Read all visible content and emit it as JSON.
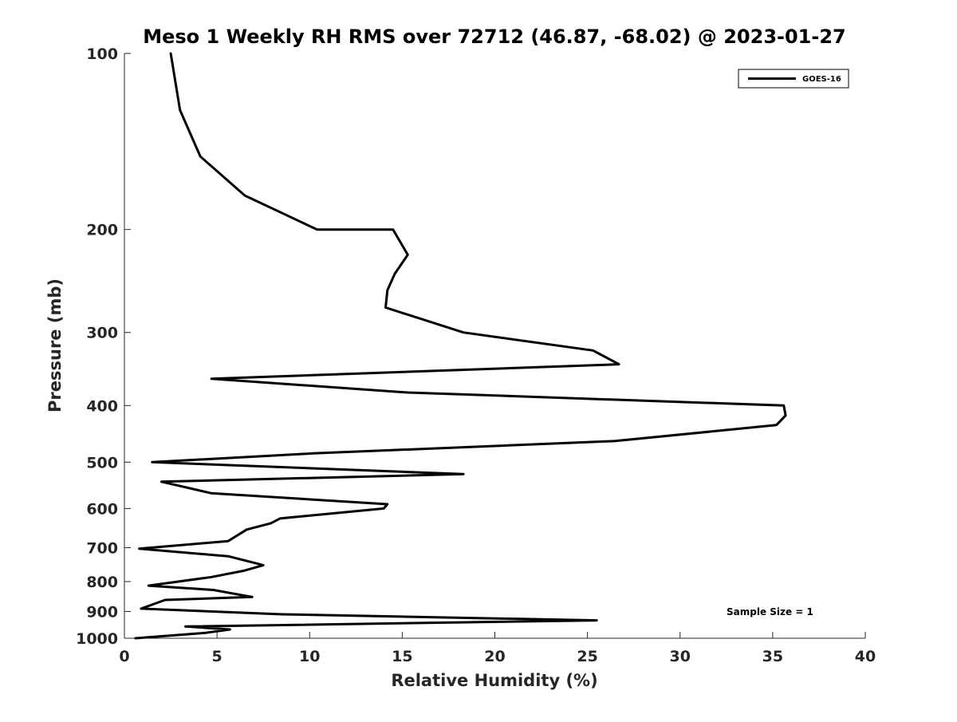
{
  "chart_data": {
    "type": "line",
    "title": "Meso 1 Weekly RH RMS over 72712 (46.87, -68.02) @ 2023-01-27",
    "xlabel": "Relative Humidity (%)",
    "ylabel": "Pressure (mb)",
    "xlim": [
      0,
      40
    ],
    "ylim": [
      100,
      1000
    ],
    "y_scale": "log",
    "y_reversed": true,
    "x_ticks": [
      "0",
      "5",
      "10",
      "15",
      "20",
      "25",
      "30",
      "35",
      "40"
    ],
    "y_ticks": [
      "100",
      "200",
      "300",
      "400",
      "500",
      "600",
      "700",
      "800",
      "900",
      "1000"
    ],
    "grid": false,
    "legend_position": "top-right",
    "annotation": "Sample Size = 1",
    "series": [
      {
        "name": "GOES-16",
        "color": "#000000",
        "points": [
          [
            2.5,
            100
          ],
          [
            3.0,
            125
          ],
          [
            4.1,
            150
          ],
          [
            6.5,
            175
          ],
          [
            10.4,
            200
          ],
          [
            14.5,
            200
          ],
          [
            15.3,
            221
          ],
          [
            14.6,
            238
          ],
          [
            14.2,
            254
          ],
          [
            14.1,
            272
          ],
          [
            18.3,
            300
          ],
          [
            25.3,
            322
          ],
          [
            26.7,
            340
          ],
          [
            4.7,
            360
          ],
          [
            15.3,
            380
          ],
          [
            35.6,
            400
          ],
          [
            35.7,
            416
          ],
          [
            35.2,
            432
          ],
          [
            26.5,
            460
          ],
          [
            10.2,
            483
          ],
          [
            1.5,
            500
          ],
          [
            18.3,
            524
          ],
          [
            2.0,
            540
          ],
          [
            4.7,
            565
          ],
          [
            14.2,
            590
          ],
          [
            14.0,
            600
          ],
          [
            8.4,
            624
          ],
          [
            7.9,
            636
          ],
          [
            6.6,
            652
          ],
          [
            5.6,
            682
          ],
          [
            0.8,
            703
          ],
          [
            5.6,
            724
          ],
          [
            7.5,
            750
          ],
          [
            6.5,
            766
          ],
          [
            4.7,
            786
          ],
          [
            1.3,
            813
          ],
          [
            4.8,
            827
          ],
          [
            6.9,
            850
          ],
          [
            2.2,
            860
          ],
          [
            0.9,
            890
          ],
          [
            8.5,
            910
          ],
          [
            25.5,
            932
          ],
          [
            3.3,
            955
          ],
          [
            5.7,
            966
          ],
          [
            4.4,
            979
          ],
          [
            0.6,
            1000
          ]
        ]
      }
    ]
  }
}
